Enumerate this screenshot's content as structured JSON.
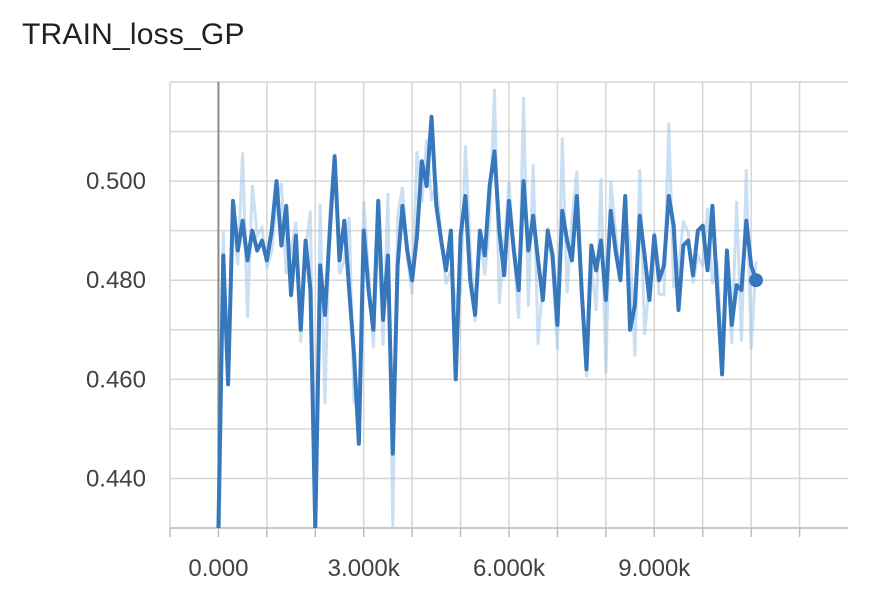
{
  "chart_data": {
    "type": "line",
    "title": "TRAIN_loss_GP",
    "xlabel": "",
    "ylabel": "",
    "xlim": [
      -1000,
      13000
    ],
    "ylim": [
      0.43,
      0.52
    ],
    "x_ticks": [
      0,
      3000,
      6000,
      9000
    ],
    "x_tick_labels": [
      "0.000",
      "3.000k",
      "6.000k",
      "9.000k"
    ],
    "y_ticks": [
      0.44,
      0.46,
      0.48,
      0.5
    ],
    "y_tick_labels": [
      "0.440",
      "0.460",
      "0.480",
      "0.500"
    ],
    "grid": true,
    "legend": "none",
    "series": [
      {
        "style": "smoothed",
        "color": "#3777bb",
        "x": [
          0,
          100,
          200,
          300,
          400,
          500,
          600,
          700,
          800,
          900,
          1000,
          1100,
          1200,
          1300,
          1400,
          1500,
          1600,
          1700,
          1800,
          1900,
          2000,
          2100,
          2200,
          2300,
          2400,
          2500,
          2600,
          2700,
          2800,
          2900,
          3000,
          3100,
          3200,
          3300,
          3400,
          3500,
          3600,
          3700,
          3800,
          3900,
          4000,
          4100,
          4200,
          4300,
          4400,
          4500,
          4600,
          4700,
          4800,
          4900,
          5000,
          5100,
          5200,
          5300,
          5400,
          5500,
          5600,
          5700,
          5800,
          5900,
          6000,
          6100,
          6200,
          6300,
          6400,
          6500,
          6600,
          6700,
          6800,
          6900,
          7000,
          7100,
          7200,
          7300,
          7400,
          7500,
          7600,
          7700,
          7800,
          7900,
          8000,
          8100,
          8200,
          8300,
          8400,
          8500,
          8600,
          8700,
          8800,
          8900,
          9000,
          9100,
          9200,
          9300,
          9400,
          9500,
          9600,
          9700,
          9800,
          9900,
          10000,
          10100,
          10200,
          10300,
          10400,
          10500,
          10600,
          10700,
          10800,
          10900,
          11000,
          11100
        ],
        "y": [
          0.43,
          0.485,
          0.459,
          0.496,
          0.486,
          0.492,
          0.484,
          0.49,
          0.486,
          0.488,
          0.484,
          0.49,
          0.5,
          0.487,
          0.495,
          0.477,
          0.489,
          0.47,
          0.488,
          0.478,
          0.43,
          0.483,
          0.473,
          0.49,
          0.505,
          0.484,
          0.492,
          0.478,
          0.465,
          0.447,
          0.49,
          0.478,
          0.47,
          0.496,
          0.472,
          0.485,
          0.445,
          0.483,
          0.495,
          0.486,
          0.48,
          0.489,
          0.504,
          0.499,
          0.513,
          0.495,
          0.488,
          0.482,
          0.49,
          0.46,
          0.489,
          0.497,
          0.48,
          0.473,
          0.49,
          0.485,
          0.499,
          0.506,
          0.49,
          0.481,
          0.496,
          0.486,
          0.478,
          0.5,
          0.486,
          0.493,
          0.484,
          0.476,
          0.49,
          0.485,
          0.471,
          0.494,
          0.488,
          0.484,
          0.497,
          0.478,
          0.462,
          0.487,
          0.482,
          0.488,
          0.476,
          0.494,
          0.486,
          0.48,
          0.497,
          0.47,
          0.475,
          0.493,
          0.485,
          0.476,
          0.489,
          0.48,
          0.483,
          0.497,
          0.491,
          0.474,
          0.487,
          0.488,
          0.481,
          0.49,
          0.491,
          0.482,
          0.495,
          0.478,
          0.461,
          0.486,
          0.471,
          0.479,
          0.478,
          0.492,
          0.483,
          0.48
        ],
        "y_detail": [
          0.43,
          0.486,
          0.458,
          0.496,
          0.489,
          0.491,
          0.485,
          0.491,
          0.484,
          0.489,
          0.484,
          0.491,
          0.504,
          0.487,
          0.496,
          0.48,
          0.489,
          0.468,
          0.49,
          0.477,
          0.43,
          0.485,
          0.472,
          0.49,
          0.505,
          0.484,
          0.49,
          0.478,
          0.468,
          0.447,
          0.491,
          0.48,
          0.468,
          0.496,
          0.475,
          0.485,
          0.445,
          0.487,
          0.496,
          0.485,
          0.481,
          0.489,
          0.506,
          0.498,
          0.513,
          0.496,
          0.488,
          0.482,
          0.488,
          0.461,
          0.49,
          0.499,
          0.481,
          0.47,
          0.491,
          0.486,
          0.5,
          0.506,
          0.49,
          0.481,
          0.497,
          0.486,
          0.476,
          0.5,
          0.485,
          0.493,
          0.484,
          0.476,
          0.49,
          0.485,
          0.472,
          0.494,
          0.49,
          0.484,
          0.497,
          0.478,
          0.462,
          0.488,
          0.482,
          0.488,
          0.476,
          0.494,
          0.487,
          0.481,
          0.497,
          0.47,
          0.475,
          0.492,
          0.486,
          0.476,
          0.489,
          0.48,
          0.483,
          0.497,
          0.491,
          0.474,
          0.487,
          0.488,
          0.481,
          0.49,
          0.491,
          0.482,
          0.494,
          0.478,
          0.462,
          0.486,
          0.471,
          0.479,
          0.478,
          0.492,
          0.483,
          0.48
        ]
      }
    ]
  }
}
